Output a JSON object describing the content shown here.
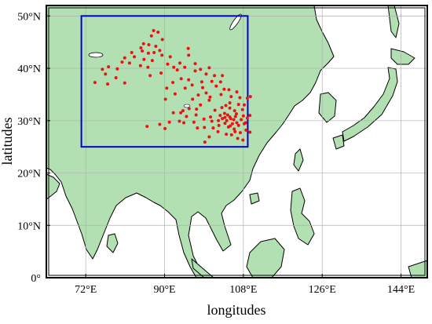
{
  "map": {
    "xlabel": "longitudes",
    "ylabel": "latitudes",
    "lon_range": [
      63,
      150
    ],
    "lat_range": [
      0,
      52
    ],
    "x_ticks": [
      {
        "value": 72,
        "label": "72°E"
      },
      {
        "value": 90,
        "label": "90°E"
      },
      {
        "value": 108,
        "label": "108°E"
      },
      {
        "value": 126,
        "label": "126°E"
      },
      {
        "value": 144,
        "label": "144°E"
      }
    ],
    "y_ticks": [
      {
        "value": 0,
        "label": "0°"
      },
      {
        "value": 10,
        "label": "10°N"
      },
      {
        "value": 20,
        "label": "20°N"
      },
      {
        "value": 30,
        "label": "30°N"
      },
      {
        "value": 40,
        "label": "40°N"
      },
      {
        "value": 50,
        "label": "50°N"
      }
    ],
    "grid": true,
    "land_color": "#b2e0b2",
    "ocean_color": "#ffffff",
    "study_region": {
      "lon": [
        71,
        109
      ],
      "lat": [
        25,
        50
      ],
      "color": "#0000cc"
    },
    "station_color": "#ee1111",
    "stations": [
      [
        87.5,
        47.2
      ],
      [
        88.5,
        46.9
      ],
      [
        87.0,
        46.2
      ],
      [
        89.5,
        45.5
      ],
      [
        85.2,
        44.7
      ],
      [
        86.4,
        44.5
      ],
      [
        88.0,
        44.2
      ],
      [
        84.6,
        43.9
      ],
      [
        88.9,
        43.4
      ],
      [
        87.6,
        43.0
      ],
      [
        82.5,
        43.0
      ],
      [
        84.9,
        43.3
      ],
      [
        86.3,
        42.9
      ],
      [
        89.4,
        42.5
      ],
      [
        80.9,
        42.0
      ],
      [
        83.1,
        42.2
      ],
      [
        85.3,
        41.7
      ],
      [
        87.2,
        41.5
      ],
      [
        80.3,
        41.2
      ],
      [
        82.0,
        41.0
      ],
      [
        84.5,
        40.5
      ],
      [
        86.2,
        40.2
      ],
      [
        77.2,
        40.3
      ],
      [
        79.2,
        39.9
      ],
      [
        75.8,
        39.8
      ],
      [
        76.5,
        38.9
      ],
      [
        78.9,
        38.2
      ],
      [
        80.9,
        37.2
      ],
      [
        77.0,
        37.0
      ],
      [
        74.1,
        37.3
      ],
      [
        90.7,
        40.8
      ],
      [
        92.1,
        40.2
      ],
      [
        93.5,
        41.0
      ],
      [
        95.5,
        42.5
      ],
      [
        94.6,
        40.2
      ],
      [
        97.0,
        39.5
      ],
      [
        98.2,
        39.8
      ],
      [
        100.2,
        40.1
      ],
      [
        99.5,
        38.9
      ],
      [
        101.4,
        38.6
      ],
      [
        103.2,
        38.6
      ],
      [
        102.8,
        37.4
      ],
      [
        100.8,
        37.5
      ],
      [
        98.5,
        37.4
      ],
      [
        96.3,
        36.8
      ],
      [
        95.5,
        37.8
      ],
      [
        93.8,
        38.0
      ],
      [
        91.9,
        37.3
      ],
      [
        90.5,
        36.2
      ],
      [
        101.8,
        36.6
      ],
      [
        103.6,
        36.0
      ],
      [
        104.7,
        35.9
      ],
      [
        102.9,
        35.0
      ],
      [
        105.2,
        34.6
      ],
      [
        106.5,
        35.5
      ],
      [
        107.2,
        34.4
      ],
      [
        108.9,
        34.3
      ],
      [
        109.6,
        34.6
      ],
      [
        108.2,
        33.0
      ],
      [
        106.9,
        33.1
      ],
      [
        104.9,
        33.4
      ],
      [
        103.1,
        32.5
      ],
      [
        101.5,
        32.0
      ],
      [
        100.2,
        33.9
      ],
      [
        98.2,
        33.0
      ],
      [
        97.3,
        32.2
      ],
      [
        95.6,
        32.3
      ],
      [
        93.7,
        31.5
      ],
      [
        92.0,
        31.5
      ],
      [
        91.1,
        29.7
      ],
      [
        88.9,
        29.3
      ],
      [
        94.4,
        29.6
      ],
      [
        97.2,
        31.1
      ],
      [
        99.0,
        30.3
      ],
      [
        100.5,
        30.7
      ],
      [
        102.3,
        30.0
      ],
      [
        103.8,
        30.6
      ],
      [
        104.9,
        30.7
      ],
      [
        106.2,
        30.8
      ],
      [
        107.5,
        30.2
      ],
      [
        108.5,
        29.6
      ],
      [
        106.5,
        29.6
      ],
      [
        105.5,
        29.4
      ],
      [
        104.6,
        28.8
      ],
      [
        103.8,
        29.5
      ],
      [
        102.2,
        27.9
      ],
      [
        100.2,
        26.9
      ],
      [
        99.2,
        25.9
      ],
      [
        104.1,
        27.4
      ],
      [
        105.3,
        27.3
      ],
      [
        106.7,
        26.6
      ],
      [
        107.9,
        26.3
      ],
      [
        108.6,
        28.2
      ],
      [
        109.5,
        27.8
      ],
      [
        108.0,
        30.9
      ],
      [
        109.5,
        31.0
      ],
      [
        107.8,
        32.1
      ],
      [
        106.0,
        31.9
      ],
      [
        104.9,
        32.4
      ],
      [
        103.7,
        31.4
      ],
      [
        105.8,
        30.2
      ],
      [
        106.9,
        29.1
      ],
      [
        105.9,
        28.4
      ],
      [
        104.4,
        31.1
      ],
      [
        102.7,
        31.0
      ],
      [
        102.4,
        29.1
      ],
      [
        101.1,
        28.6
      ],
      [
        100.8,
        29.9
      ],
      [
        99.1,
        28.7
      ],
      [
        97.5,
        28.6
      ],
      [
        96.7,
        29.7
      ],
      [
        95.0,
        30.8
      ],
      [
        93.4,
        29.9
      ],
      [
        90.1,
        28.5
      ],
      [
        94.2,
        31.9
      ],
      [
        97.7,
        34.9
      ],
      [
        99.5,
        35.3
      ],
      [
        100.4,
        34.5
      ],
      [
        98.7,
        36.3
      ],
      [
        94.7,
        36.2
      ],
      [
        92.4,
        35.1
      ],
      [
        90.2,
        34.1
      ],
      [
        96.4,
        34.1
      ],
      [
        86.0,
        28.9
      ],
      [
        86.7,
        38.6
      ],
      [
        89.2,
        39.1
      ],
      [
        92.9,
        39.7
      ],
      [
        91.3,
        42.2
      ],
      [
        95.4,
        43.8
      ],
      [
        97.0,
        40.9
      ],
      [
        104.0,
        32.9
      ],
      [
        106.4,
        31.3
      ],
      [
        108.2,
        29.4
      ],
      [
        107.3,
        27.7
      ],
      [
        105.1,
        30.4
      ],
      [
        104.2,
        30.0
      ],
      [
        106.1,
        27.9
      ],
      [
        105.0,
        29.0
      ],
      [
        103.2,
        30.4
      ],
      [
        108.9,
        30.5
      ]
    ]
  }
}
